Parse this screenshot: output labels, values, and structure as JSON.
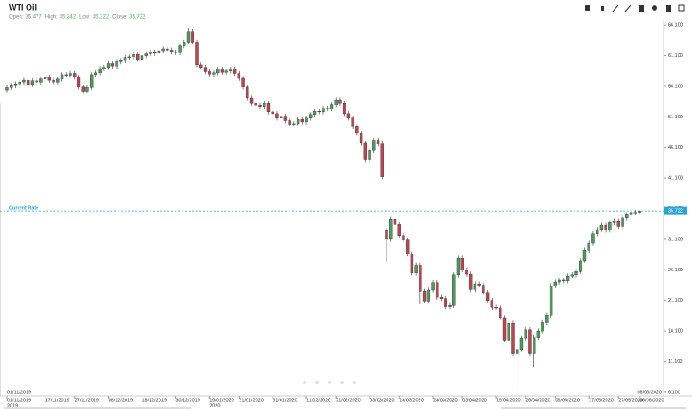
{
  "chart_data": {
    "type": "candlestick",
    "title": "WTI Oil",
    "quote": {
      "open_label": "Open:",
      "open": 35.477,
      "high_label": "High:",
      "high": 35.842,
      "low_label": "Low:",
      "low": 35.322,
      "close_label": "Close:",
      "close": 35.722
    },
    "current_rate_label": "Current Rate",
    "current_rate": 35.722,
    "current_rate_color": "#29a3d6",
    "range_start": "01/11/2019",
    "range_end": "08/06/2020",
    "year_labels": [
      "2019",
      "2020"
    ],
    "categories": [
      "01/11/2019",
      null,
      null,
      null,
      null,
      null,
      null,
      null,
      null,
      "17/11/2019",
      null,
      null,
      null,
      null,
      null,
      null,
      "27/11/2019",
      null,
      null,
      null,
      null,
      null,
      null,
      null,
      "08/12/2019",
      null,
      null,
      null,
      null,
      null,
      null,
      null,
      "18/12/2019",
      null,
      null,
      null,
      null,
      null,
      null,
      null,
      "30/12/2019",
      null,
      null,
      null,
      null,
      null,
      null,
      null,
      "10/01/2020",
      null,
      null,
      null,
      null,
      null,
      null,
      "21/01/2020",
      null,
      null,
      null,
      null,
      null,
      null,
      null,
      "31/01/2020",
      null,
      null,
      null,
      null,
      null,
      null,
      null,
      "11/02/2020",
      null,
      null,
      null,
      null,
      null,
      null,
      "21/02/2020",
      null,
      null,
      null,
      null,
      null,
      null,
      null,
      "03/03/2020",
      null,
      null,
      null,
      null,
      null,
      null,
      "13/03/2020",
      null,
      null,
      null,
      null,
      null,
      null,
      null,
      "24/03/2020",
      null,
      null,
      null,
      null,
      null,
      null,
      "03/04/2020",
      null,
      null,
      null,
      null,
      null,
      null,
      null,
      "15/04/2020",
      null,
      null,
      null,
      null,
      null,
      null,
      "26/04/2020",
      null,
      null,
      null,
      null,
      null,
      null,
      "06/05/2020",
      null,
      null,
      null,
      null,
      null,
      null,
      null,
      "17/05/2020",
      null,
      null,
      null,
      null,
      null,
      null,
      "27/05/2020",
      null,
      null,
      null,
      null,
      "06/06/2020"
    ],
    "series": [
      {
        "up_color": "#4a9e5c",
        "down_color": "#c2434d",
        "open": [
          55.5,
          55.9,
          56.2,
          56.5,
          56.8,
          57.1,
          56.4,
          57.0,
          56.8,
          57.3,
          57.6,
          57.1,
          56.8,
          57.3,
          58.0,
          57.9,
          58.2,
          57.6,
          56.0,
          55.3,
          55.9,
          58.0,
          58.3,
          59.0,
          59.2,
          59.8,
          59.4,
          60.1,
          60.3,
          60.8,
          60.9,
          61.3,
          60.5,
          61.1,
          61.4,
          61.7,
          61.5,
          61.9,
          62.2,
          62.0,
          61.7,
          61.6,
          62.7,
          63.3,
          65.0,
          63.3,
          59.6,
          59.2,
          58.5,
          58.1,
          58.3,
          58.9,
          58.4,
          58.6,
          58.9,
          58.2,
          57.4,
          56.0,
          54.2,
          53.3,
          53.0,
          52.8,
          53.3,
          51.9,
          51.6,
          50.9,
          51.2,
          50.5,
          49.9,
          50.0,
          50.7,
          50.3,
          50.9,
          51.5,
          52.0,
          51.9,
          52.5,
          52.4,
          53.1,
          53.9,
          53.3,
          51.6,
          50.9,
          49.5,
          48.4,
          46.8,
          44.1,
          45.6,
          47.3,
          46.7,
          32.5,
          31.1,
          34.4,
          33.5,
          31.7,
          31.0,
          28.7,
          25.6,
          26.8,
          22.6,
          21.0,
          22.8,
          24.0,
          21.6,
          21.4,
          20.1,
          20.3,
          25.3,
          28.0,
          26.1,
          25.4,
          22.9,
          23.8,
          23.6,
          22.4,
          21.1,
          20.0,
          19.9,
          18.3,
          14.6,
          17.4,
          12.4,
          13.1,
          14.9,
          16.3,
          12.4,
          15.0,
          16.1,
          17.5,
          18.7,
          23.5,
          24.1,
          24.4,
          24.3,
          25.1,
          25.3,
          25.8,
          27.6,
          29.3,
          30.5,
          32.0,
          32.7,
          33.4,
          32.6,
          33.8,
          34.1,
          33.2,
          34.6,
          35.1,
          35.5,
          35.477
        ],
        "high": [
          56.3,
          56.6,
          56.9,
          57.2,
          57.5,
          57.5,
          57.4,
          57.4,
          57.7,
          58.0,
          58.0,
          57.5,
          57.7,
          58.4,
          58.4,
          58.6,
          58.6,
          58.0,
          56.4,
          56.3,
          58.4,
          58.7,
          59.4,
          59.6,
          60.2,
          60.2,
          60.5,
          60.7,
          61.2,
          61.3,
          61.7,
          61.7,
          61.5,
          61.8,
          62.1,
          62.1,
          62.3,
          62.6,
          62.6,
          62.4,
          62.1,
          63.1,
          63.7,
          65.6,
          65.4,
          63.7,
          60.0,
          59.6,
          58.9,
          58.7,
          59.3,
          59.3,
          59.0,
          59.3,
          59.3,
          58.6,
          57.8,
          56.4,
          54.6,
          53.7,
          53.4,
          53.7,
          53.7,
          52.3,
          52.0,
          51.6,
          51.6,
          50.9,
          50.4,
          51.1,
          51.1,
          51.3,
          51.9,
          52.4,
          52.4,
          52.9,
          52.9,
          53.5,
          54.3,
          54.3,
          53.7,
          52.0,
          51.3,
          49.9,
          48.8,
          47.2,
          46.0,
          47.7,
          47.7,
          47.1,
          32.9,
          34.8,
          36.4,
          33.9,
          32.1,
          31.4,
          29.1,
          27.2,
          27.2,
          23.0,
          23.2,
          24.4,
          24.4,
          22.0,
          21.8,
          20.7,
          25.7,
          28.4,
          28.4,
          26.5,
          25.8,
          24.2,
          24.2,
          24.0,
          22.8,
          21.5,
          20.4,
          20.3,
          18.7,
          17.8,
          17.8,
          13.5,
          15.3,
          16.7,
          16.7,
          15.4,
          16.5,
          17.9,
          19.1,
          23.9,
          24.5,
          24.8,
          24.8,
          25.5,
          25.7,
          26.2,
          28.0,
          29.7,
          30.9,
          32.4,
          33.1,
          33.8,
          33.8,
          34.2,
          34.5,
          34.5,
          35.0,
          35.5,
          35.9,
          35.9,
          35.842
        ],
        "low": [
          55.1,
          55.5,
          55.8,
          56.1,
          56.4,
          56.0,
          56.0,
          56.4,
          56.4,
          56.9,
          56.7,
          56.4,
          56.4,
          56.9,
          57.5,
          57.5,
          57.2,
          55.6,
          54.9,
          54.9,
          55.5,
          57.6,
          57.9,
          58.6,
          58.8,
          59.0,
          59.0,
          59.7,
          59.9,
          60.4,
          60.5,
          60.1,
          60.1,
          60.7,
          61.0,
          61.1,
          61.1,
          61.5,
          61.6,
          61.3,
          61.2,
          61.2,
          62.3,
          62.9,
          62.9,
          59.2,
          58.8,
          58.1,
          57.7,
          57.7,
          57.9,
          58.0,
          58.0,
          58.2,
          57.8,
          57.0,
          55.6,
          53.8,
          52.9,
          52.6,
          52.4,
          52.4,
          51.5,
          51.2,
          50.5,
          50.5,
          50.1,
          49.5,
          49.5,
          49.6,
          49.9,
          49.9,
          50.5,
          51.1,
          51.5,
          51.5,
          52.0,
          52.0,
          52.7,
          52.9,
          51.2,
          50.5,
          49.1,
          48.0,
          46.4,
          43.7,
          43.7,
          45.2,
          46.3,
          40.9,
          27.3,
          30.7,
          33.1,
          31.3,
          30.6,
          28.3,
          25.2,
          25.2,
          20.5,
          20.6,
          20.6,
          22.4,
          21.2,
          21.0,
          19.7,
          19.7,
          19.9,
          24.9,
          25.7,
          25.0,
          22.5,
          22.5,
          23.2,
          22.0,
          20.7,
          19.6,
          19.5,
          17.9,
          14.2,
          14.2,
          12.0,
          6.5,
          12.7,
          14.5,
          12.0,
          10.2,
          14.6,
          15.7,
          17.1,
          18.3,
          23.1,
          23.7,
          23.9,
          23.9,
          24.7,
          24.9,
          25.4,
          27.2,
          28.9,
          30.1,
          31.6,
          32.3,
          32.2,
          32.2,
          33.4,
          32.8,
          32.8,
          34.2,
          34.7,
          35.0,
          35.322
        ],
        "close": [
          55.9,
          56.2,
          56.5,
          56.8,
          57.1,
          56.4,
          57.0,
          56.8,
          57.3,
          57.6,
          57.1,
          56.8,
          57.3,
          58.0,
          57.9,
          58.2,
          57.6,
          56.0,
          55.3,
          55.9,
          58.0,
          58.3,
          59.0,
          59.2,
          59.8,
          59.4,
          60.1,
          60.3,
          60.8,
          60.9,
          61.3,
          60.5,
          61.1,
          61.4,
          61.7,
          61.5,
          61.9,
          62.2,
          62.0,
          61.7,
          61.6,
          62.7,
          63.3,
          65.0,
          63.3,
          59.6,
          59.2,
          58.5,
          58.1,
          58.3,
          58.9,
          58.4,
          58.6,
          58.9,
          58.2,
          57.4,
          56.0,
          54.2,
          53.3,
          53.0,
          52.8,
          53.3,
          51.9,
          51.6,
          50.9,
          51.2,
          50.5,
          49.9,
          50.0,
          50.7,
          50.3,
          50.9,
          51.5,
          52.0,
          51.9,
          52.5,
          52.4,
          53.1,
          53.9,
          53.3,
          51.6,
          50.9,
          49.5,
          48.4,
          46.8,
          44.1,
          45.6,
          47.3,
          46.7,
          41.3,
          31.1,
          34.4,
          33.5,
          31.7,
          31.0,
          28.7,
          25.6,
          26.8,
          22.6,
          21.0,
          22.8,
          24.0,
          21.6,
          21.4,
          20.1,
          20.3,
          25.3,
          28.0,
          26.1,
          25.4,
          22.9,
          23.8,
          23.6,
          22.4,
          21.1,
          20.0,
          19.9,
          18.3,
          14.6,
          17.4,
          12.4,
          13.1,
          14.9,
          16.3,
          12.4,
          15.0,
          16.1,
          17.5,
          18.7,
          23.5,
          24.1,
          24.4,
          24.3,
          25.1,
          25.3,
          25.8,
          27.6,
          29.3,
          30.5,
          32.0,
          32.7,
          33.4,
          32.6,
          33.8,
          34.1,
          33.2,
          34.6,
          35.1,
          35.5,
          35.4,
          35.722
        ]
      }
    ],
    "ylim": [
      5.5,
      67.0
    ],
    "yticks": [
      {
        "value": 66.1,
        "label": "66.100"
      },
      {
        "value": 61.1,
        "label": "61.100"
      },
      {
        "value": 56.1,
        "label": "56.100"
      },
      {
        "value": 51.1,
        "label": "51.100"
      },
      {
        "value": 46.1,
        "label": "46.100"
      },
      {
        "value": 41.1,
        "label": "41.100"
      },
      {
        "value": 36.1,
        "label": "36.100"
      },
      {
        "value": 31.1,
        "label": "31.100"
      },
      {
        "value": 26.1,
        "label": "26.100"
      },
      {
        "value": 21.1,
        "label": "21.100"
      },
      {
        "value": 16.1,
        "label": "16.100"
      },
      {
        "value": 11.1,
        "label": "11.100"
      },
      {
        "value": 6.1,
        "label": "6.100"
      }
    ],
    "grid": false
  }
}
